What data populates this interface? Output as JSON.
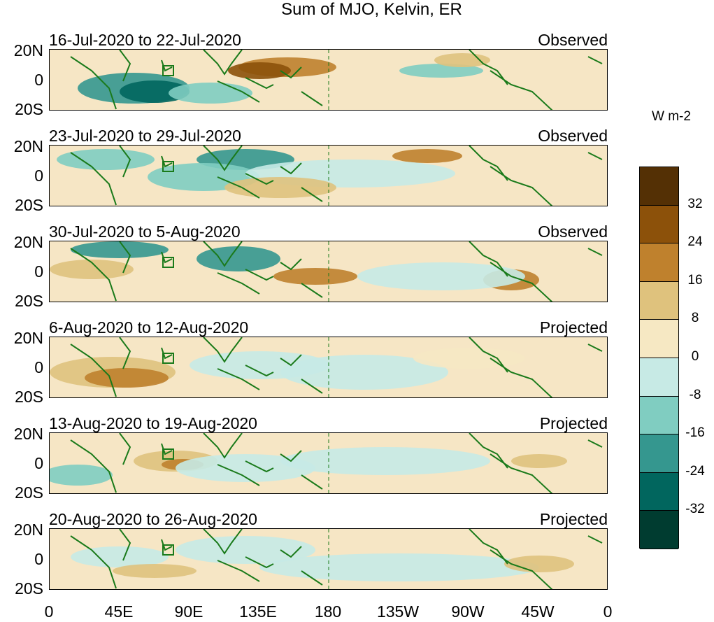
{
  "title": "Sum of MJO, Kelvin, ER",
  "lat_labels": [
    "20N",
    "0",
    "20S"
  ],
  "lon_labels": [
    "0",
    "45E",
    "90E",
    "135E",
    "180",
    "135W",
    "90W",
    "45W",
    "0"
  ],
  "panels": [
    {
      "date": "16-Jul-2020 to 22-Jul-2020",
      "status": "Observed"
    },
    {
      "date": "23-Jul-2020 to 29-Jul-2020",
      "status": "Observed"
    },
    {
      "date": "30-Jul-2020 to 5-Aug-2020",
      "status": "Observed"
    },
    {
      "date": "6-Aug-2020 to 12-Aug-2020",
      "status": "Projected"
    },
    {
      "date": "13-Aug-2020 to 19-Aug-2020",
      "status": "Projected"
    },
    {
      "date": "20-Aug-2020 to 26-Aug-2020",
      "status": "Projected"
    }
  ],
  "colorbar": {
    "unit": "W m-2",
    "ticks": [
      "32",
      "24",
      "16",
      "8",
      "0",
      "-8",
      "-16",
      "-24",
      "-32"
    ],
    "colors": [
      "#543005",
      "#8c510a",
      "#bf812d",
      "#dfc27d",
      "#f6e8c3",
      "#c7eae5",
      "#80cdc1",
      "#35978f",
      "#01665e",
      "#003c30"
    ]
  }
}
